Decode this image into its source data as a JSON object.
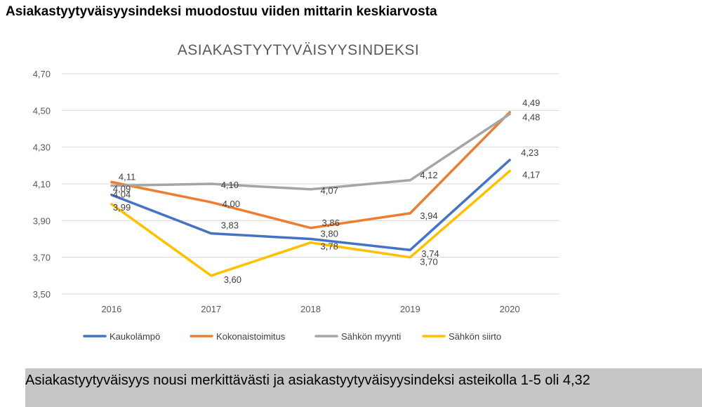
{
  "page": {
    "title": "Asiakastyytyväisyysindeksi muodostuu viiden mittarin keskiarvosta",
    "footer": "Asiakastyytyväisyys nousi merkittävästi ja asiakastyytyväisyysindeksi asteikolla 1-5 oli 4,32"
  },
  "chart_data": {
    "type": "line",
    "title": "ASIAKASTYYTYVÄISYYSINDEKSI",
    "xlabel": "",
    "ylabel": "",
    "categories": [
      "2016",
      "2017",
      "2018",
      "2019",
      "2020"
    ],
    "ylim": [
      3.5,
      4.7
    ],
    "yticks": [
      "4,70",
      "4,50",
      "4,30",
      "4,10",
      "3,90",
      "3,70",
      "3,50"
    ],
    "ytick_values": [
      4.7,
      4.5,
      4.3,
      4.1,
      3.9,
      3.7,
      3.5
    ],
    "grid": true,
    "legend_position": "bottom",
    "series": [
      {
        "name": "Kaukolämpö",
        "color": "#4472c4",
        "values": [
          4.04,
          3.83,
          3.8,
          3.74,
          4.23
        ],
        "labels": [
          "4,04",
          "3,83",
          "3,80",
          "3,74",
          "4,23"
        ]
      },
      {
        "name": "Kokonaistoimitus",
        "color": "#ed7d31",
        "values": [
          4.11,
          4.0,
          3.86,
          3.94,
          4.49
        ],
        "labels": [
          "4,11",
          "4,00",
          "3,86",
          "3,94",
          "4,49"
        ]
      },
      {
        "name": "Sähkön myynti",
        "color": "#a5a5a5",
        "values": [
          4.09,
          4.1,
          4.07,
          4.12,
          4.48
        ],
        "labels": [
          "4,09",
          "4,10",
          "4,07",
          "4,12",
          "4,48"
        ]
      },
      {
        "name": "Sähkön siirto",
        "color": "#ffc000",
        "values": [
          3.99,
          3.6,
          3.78,
          3.7,
          4.17
        ],
        "labels": [
          "3,99",
          "3,60",
          "3,78",
          "3,70",
          "4,17"
        ]
      }
    ]
  }
}
